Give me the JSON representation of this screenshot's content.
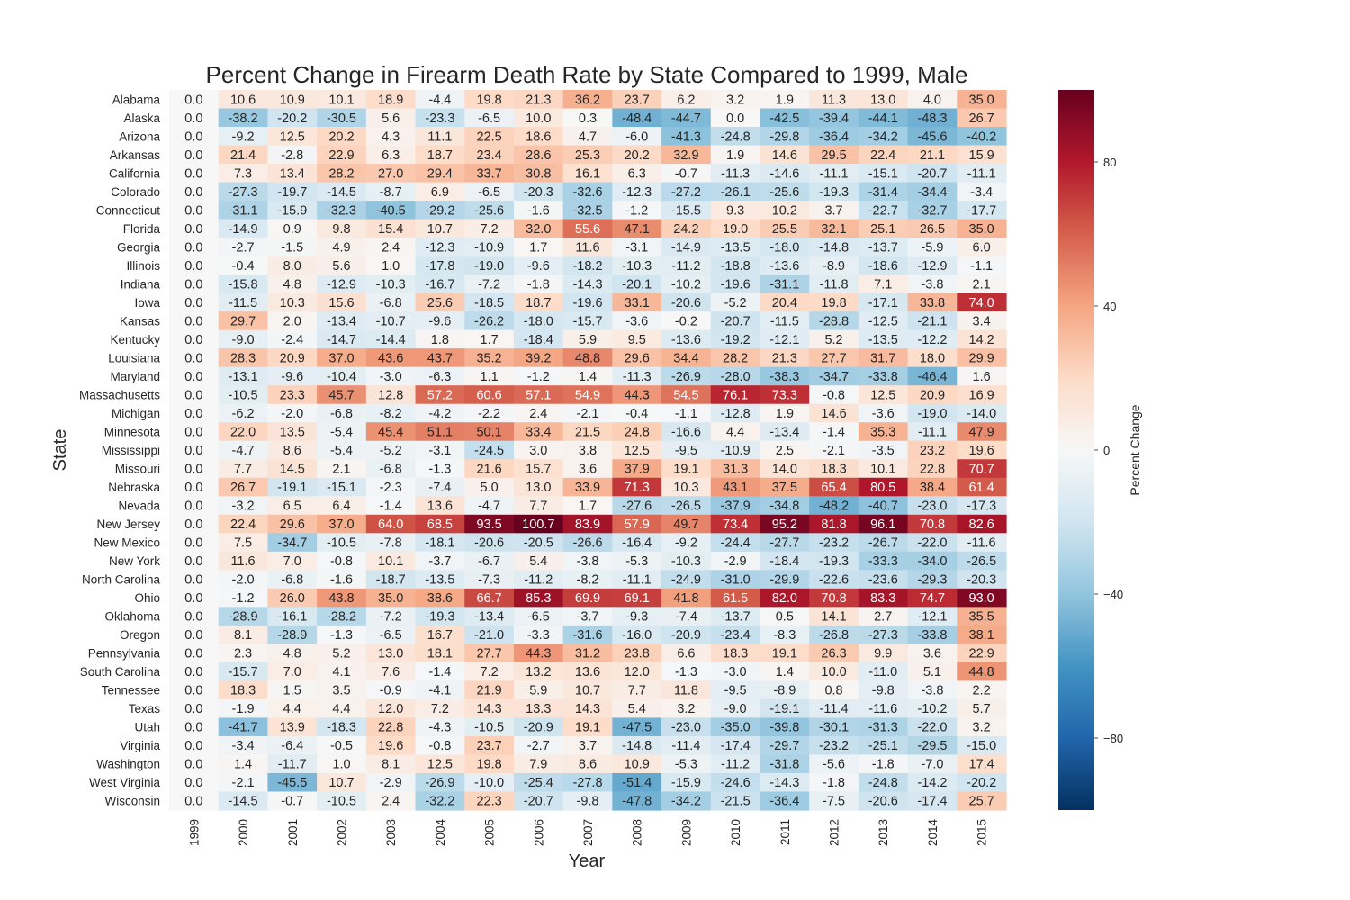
{
  "chart_data": {
    "type": "heatmap",
    "title": "Percent Change in Firearm Death Rate by State Compared to 1999, Male",
    "xlabel": "Year",
    "ylabel": "State",
    "colorbar_label": "Percent Change",
    "colorbar_ticks": [
      "80",
      "40",
      "0",
      "−40",
      "−80"
    ],
    "colorbar_values": [
      80,
      40,
      0,
      -40,
      -80
    ],
    "vmin": -100,
    "vmax": 100,
    "colormap": "RdBu_r",
    "x": [
      "1999",
      "2000",
      "2001",
      "2002",
      "2003",
      "2004",
      "2005",
      "2006",
      "2007",
      "2008",
      "2009",
      "2010",
      "2011",
      "2012",
      "2013",
      "2014",
      "2015"
    ],
    "y": [
      "Alabama",
      "Alaska",
      "Arizona",
      "Arkansas",
      "California",
      "Colorado",
      "Connecticut",
      "Florida",
      "Georgia",
      "Illinois",
      "Indiana",
      "Iowa",
      "Kansas",
      "Kentucky",
      "Louisiana",
      "Maryland",
      "Massachusetts",
      "Michigan",
      "Minnesota",
      "Mississippi",
      "Missouri",
      "Nebraska",
      "Nevada",
      "New Jersey",
      "New Mexico",
      "New York",
      "North Carolina",
      "Ohio",
      "Oklahoma",
      "Oregon",
      "Pennsylvania",
      "South Carolina",
      "Tennessee",
      "Texas",
      "Utah",
      "Virginia",
      "Washington",
      "West Virginia",
      "Wisconsin"
    ],
    "values": [
      [
        0.0,
        10.6,
        10.9,
        10.1,
        18.9,
        -4.4,
        19.8,
        21.3,
        36.2,
        23.7,
        6.2,
        3.2,
        1.9,
        11.3,
        13.0,
        4.0,
        35.0
      ],
      [
        0.0,
        -38.2,
        -20.2,
        -30.5,
        5.6,
        -23.3,
        -6.5,
        10.0,
        0.3,
        -48.4,
        -44.7,
        0.0,
        -42.5,
        -39.4,
        -44.1,
        -48.3,
        26.7
      ],
      [
        0.0,
        -9.2,
        12.5,
        20.2,
        4.3,
        11.1,
        22.5,
        18.6,
        4.7,
        -6.0,
        -41.3,
        -24.8,
        -29.8,
        -36.4,
        -34.2,
        -45.6,
        -40.2
      ],
      [
        0.0,
        21.4,
        -2.8,
        22.9,
        6.3,
        18.7,
        23.4,
        28.6,
        25.3,
        20.2,
        32.9,
        1.9,
        14.6,
        29.5,
        22.4,
        21.1,
        15.9
      ],
      [
        0.0,
        7.3,
        13.4,
        28.2,
        27.0,
        29.4,
        33.7,
        30.8,
        16.1,
        6.3,
        -0.7,
        -11.3,
        -14.6,
        -11.1,
        -15.1,
        -20.7,
        -11.1
      ],
      [
        0.0,
        -27.3,
        -19.7,
        -14.5,
        -8.7,
        6.9,
        -6.5,
        -20.3,
        -32.6,
        -12.3,
        -27.2,
        -26.1,
        -25.6,
        -19.3,
        -31.4,
        -34.4,
        -3.4
      ],
      [
        0.0,
        -31.1,
        -15.9,
        -32.3,
        -40.5,
        -29.2,
        -25.6,
        -1.6,
        -32.5,
        -1.2,
        -15.5,
        9.3,
        10.2,
        3.7,
        -22.7,
        -32.7,
        -17.7
      ],
      [
        0.0,
        -14.9,
        0.9,
        9.8,
        15.4,
        10.7,
        7.2,
        32.0,
        55.6,
        47.1,
        24.2,
        19.0,
        25.5,
        32.1,
        25.1,
        26.5,
        35.0
      ],
      [
        0.0,
        -2.7,
        -1.5,
        4.9,
        2.4,
        -12.3,
        -10.9,
        1.7,
        11.6,
        -3.1,
        -14.9,
        -13.5,
        -18.0,
        -14.8,
        -13.7,
        -5.9,
        6.0
      ],
      [
        0.0,
        -0.4,
        8.0,
        5.6,
        1.0,
        -17.8,
        -19.0,
        -9.6,
        -18.2,
        -10.3,
        -11.2,
        -18.8,
        -13.6,
        -8.9,
        -18.6,
        -12.9,
        -1.1
      ],
      [
        0.0,
        -15.8,
        4.8,
        -12.9,
        -10.3,
        -16.7,
        -7.2,
        -1.8,
        -14.3,
        -20.1,
        -10.2,
        -19.6,
        -31.1,
        -11.8,
        7.1,
        -3.8,
        2.1
      ],
      [
        0.0,
        -11.5,
        10.3,
        15.6,
        -6.8,
        25.6,
        -18.5,
        18.7,
        -19.6,
        33.1,
        -20.6,
        -5.2,
        20.4,
        19.8,
        -17.1,
        33.8,
        74.0
      ],
      [
        0.0,
        29.7,
        2.0,
        -13.4,
        -10.7,
        -9.6,
        -26.2,
        -18.0,
        -15.7,
        -3.6,
        -0.2,
        -20.7,
        -11.5,
        -28.8,
        -12.5,
        -21.1,
        3.4
      ],
      [
        0.0,
        -9.0,
        -2.4,
        -14.7,
        -14.4,
        1.8,
        1.7,
        -18.4,
        5.9,
        9.5,
        -13.6,
        -19.2,
        -12.1,
        5.2,
        -13.5,
        -12.2,
        14.2
      ],
      [
        0.0,
        28.3,
        20.9,
        37.0,
        43.6,
        43.7,
        35.2,
        39.2,
        48.8,
        29.6,
        34.4,
        28.2,
        21.3,
        27.7,
        31.7,
        18.0,
        29.9
      ],
      [
        0.0,
        -13.1,
        -9.6,
        -10.4,
        -3.0,
        -6.3,
        1.1,
        -1.2,
        1.4,
        -11.3,
        -26.9,
        -28.0,
        -38.3,
        -34.7,
        -33.8,
        -46.4,
        1.6
      ],
      [
        0.0,
        -10.5,
        23.3,
        45.7,
        12.8,
        57.2,
        60.6,
        57.1,
        54.9,
        44.3,
        54.5,
        76.1,
        73.3,
        -0.8,
        12.5,
        20.9,
        16.9
      ],
      [
        0.0,
        -6.2,
        -2.0,
        -6.8,
        -8.2,
        -4.2,
        -2.2,
        2.4,
        -2.1,
        -0.4,
        -1.1,
        -12.8,
        1.9,
        14.6,
        -3.6,
        -19.0,
        -14.0
      ],
      [
        0.0,
        22.0,
        13.5,
        -5.4,
        45.4,
        51.1,
        50.1,
        33.4,
        21.5,
        24.8,
        -16.6,
        4.4,
        -13.4,
        -1.4,
        35.3,
        -11.1,
        47.9
      ],
      [
        0.0,
        -4.7,
        8.6,
        -5.4,
        -5.2,
        -3.1,
        -24.5,
        3.0,
        3.8,
        12.5,
        -9.5,
        -10.9,
        2.5,
        -2.1,
        -3.5,
        23.2,
        19.6
      ],
      [
        0.0,
        7.7,
        14.5,
        2.1,
        -6.8,
        -1.3,
        21.6,
        15.7,
        3.6,
        37.9,
        19.1,
        31.3,
        14.0,
        18.3,
        10.1,
        22.8,
        70.7
      ],
      [
        0.0,
        26.7,
        -19.1,
        -15.1,
        -2.3,
        -7.4,
        5.0,
        13.0,
        33.9,
        71.3,
        10.3,
        43.1,
        37.5,
        65.4,
        80.5,
        38.4,
        61.4
      ],
      [
        0.0,
        -3.2,
        6.5,
        6.4,
        -1.4,
        13.6,
        -4.7,
        7.7,
        1.7,
        -27.6,
        -26.5,
        -37.9,
        -34.8,
        -48.2,
        -40.7,
        -23.0,
        -17.3
      ],
      [
        0.0,
        22.4,
        29.6,
        37.0,
        64.0,
        68.5,
        93.5,
        100.7,
        83.9,
        57.9,
        49.7,
        73.4,
        95.2,
        81.8,
        96.1,
        70.8,
        82.6
      ],
      [
        0.0,
        7.5,
        -34.7,
        -10.5,
        -7.8,
        -18.1,
        -20.6,
        -20.5,
        -26.6,
        -16.4,
        -9.2,
        -24.4,
        -27.7,
        -23.2,
        -26.7,
        -22.0,
        -11.6
      ],
      [
        0.0,
        11.6,
        7.0,
        -0.8,
        10.1,
        -3.7,
        -6.7,
        5.4,
        -3.8,
        -5.3,
        -10.3,
        -2.9,
        -18.4,
        -19.3,
        -33.3,
        -34.0,
        -26.5
      ],
      [
        0.0,
        -2.0,
        -6.8,
        -1.6,
        -18.7,
        -13.5,
        -7.3,
        -11.2,
        -8.2,
        -11.1,
        -24.9,
        -31.0,
        -29.9,
        -22.6,
        -23.6,
        -29.3,
        -20.3
      ],
      [
        0.0,
        -1.2,
        26.0,
        43.8,
        35.0,
        38.6,
        66.7,
        85.3,
        69.9,
        69.1,
        41.8,
        61.5,
        82.0,
        70.8,
        83.3,
        74.7,
        93.0
      ],
      [
        0.0,
        -28.9,
        -16.1,
        -28.2,
        -7.2,
        -19.3,
        -13.4,
        -6.5,
        -3.7,
        -9.3,
        -7.4,
        -13.7,
        0.5,
        14.1,
        2.7,
        -12.1,
        35.5
      ],
      [
        0.0,
        8.1,
        -28.9,
        -1.3,
        -6.5,
        16.7,
        -21.0,
        -3.3,
        -31.6,
        -16.0,
        -20.9,
        -23.4,
        -8.3,
        -26.8,
        -27.3,
        -33.8,
        38.1
      ],
      [
        0.0,
        2.3,
        4.8,
        5.2,
        13.0,
        18.1,
        27.7,
        44.3,
        31.2,
        23.8,
        6.6,
        18.3,
        19.1,
        26.3,
        9.9,
        3.6,
        22.9
      ],
      [
        0.0,
        -15.7,
        7.0,
        4.1,
        7.6,
        -1.4,
        7.2,
        13.2,
        13.6,
        12.0,
        -1.3,
        -3.0,
        1.4,
        10.0,
        -11.0,
        5.1,
        44.8
      ],
      [
        0.0,
        18.3,
        1.5,
        3.5,
        -0.9,
        -4.1,
        21.9,
        5.9,
        10.7,
        7.7,
        11.8,
        -9.5,
        -8.9,
        0.8,
        -9.8,
        -3.8,
        2.2
      ],
      [
        0.0,
        -1.9,
        4.4,
        4.4,
        12.0,
        7.2,
        14.3,
        13.3,
        14.3,
        5.4,
        3.2,
        -9.0,
        -19.1,
        -11.4,
        -11.6,
        -10.2,
        5.7
      ],
      [
        0.0,
        -41.7,
        13.9,
        -18.3,
        22.8,
        -4.3,
        -10.5,
        -20.9,
        19.1,
        -47.5,
        -23.0,
        -35.0,
        -39.8,
        -30.1,
        -31.3,
        -22.0,
        3.2
      ],
      [
        0.0,
        -3.4,
        -6.4,
        -0.5,
        19.6,
        -0.8,
        23.7,
        -2.7,
        3.7,
        -14.8,
        -11.4,
        -17.4,
        -29.7,
        -23.2,
        -25.1,
        -29.5,
        -15.0
      ],
      [
        0.0,
        1.4,
        -11.7,
        1.0,
        8.1,
        12.5,
        19.8,
        7.9,
        8.6,
        10.9,
        -5.3,
        -11.2,
        -31.8,
        -5.6,
        -1.8,
        -7.0,
        17.4
      ],
      [
        0.0,
        -2.1,
        -45.5,
        10.7,
        -2.9,
        -26.9,
        -10.0,
        -25.4,
        -27.8,
        -51.4,
        -15.9,
        -24.6,
        -14.3,
        -1.8,
        -24.8,
        -14.2,
        -20.2
      ],
      [
        0.0,
        -14.5,
        -0.7,
        -10.5,
        2.4,
        -32.2,
        22.3,
        -20.7,
        -9.8,
        -47.8,
        -34.2,
        -21.5,
        -36.4,
        -7.5,
        -20.6,
        -17.4,
        25.7
      ]
    ]
  }
}
